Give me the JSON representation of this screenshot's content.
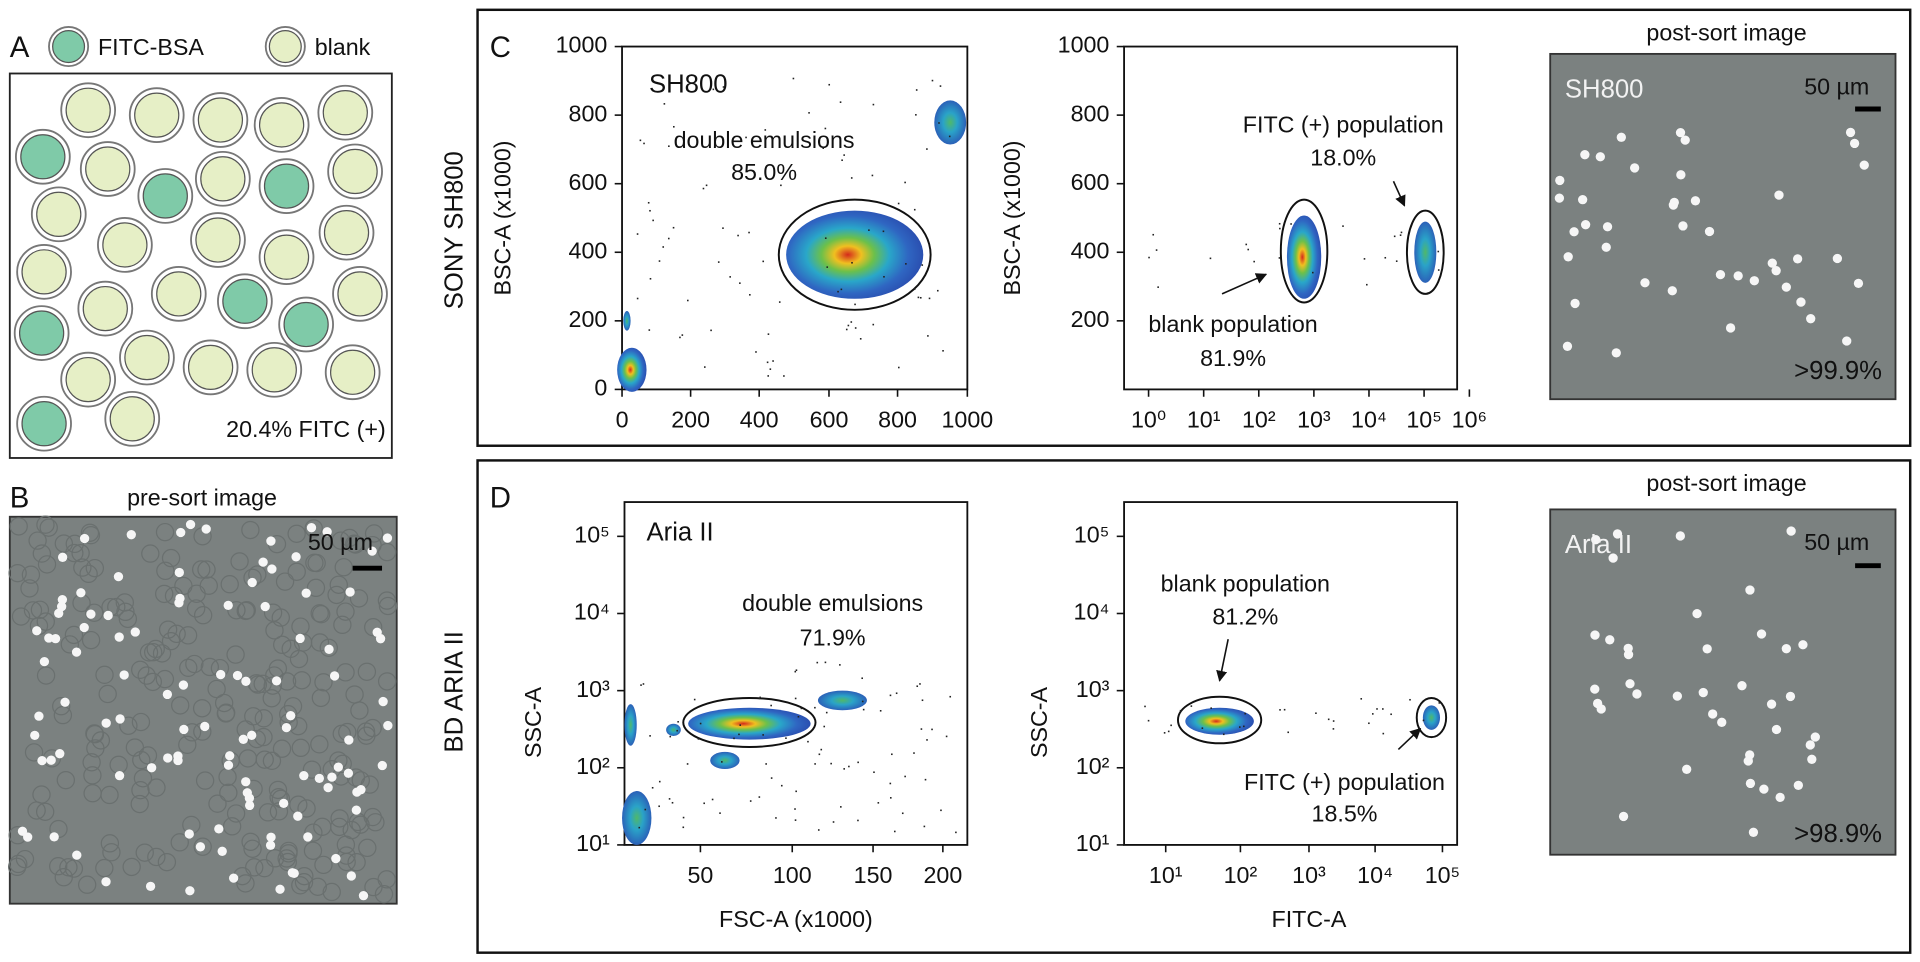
{
  "panel_a": {
    "label": "A",
    "legend": [
      "FITC-BSA",
      "blank"
    ],
    "caption": "20.4% FITC (+)"
  },
  "panel_b": {
    "label": "B",
    "title": "pre-sort image",
    "scale_bar": "50 µm"
  },
  "panel_c": {
    "label": "C",
    "row_label": "SONY SH800",
    "scatter_left": {
      "inset": "SH800",
      "y_label": "BSC-A (x1000)",
      "y_ticks": [
        "1000",
        "800",
        "600",
        "400",
        "200",
        "0"
      ],
      "x_ticks": [
        "0",
        "200",
        "400",
        "600",
        "800",
        "1000"
      ],
      "gate_label": "double emulsions",
      "gate_percent": "85.0%"
    },
    "scatter_right": {
      "y_label": "BSC-A (x1000)",
      "y_ticks": [
        "1000",
        "800",
        "600",
        "400",
        "200"
      ],
      "x_ticks": [
        "10⁰",
        "10¹",
        "10²",
        "10³",
        "10⁴",
        "10⁵",
        "10⁶"
      ],
      "positive_label": "FITC (+) population",
      "positive_percent": "18.0%",
      "blank_label": "blank population",
      "blank_percent": "81.9%"
    },
    "image": {
      "title": "post-sort image",
      "inset": "SH800",
      "scale_bar": "50 µm",
      "purity": ">99.9%"
    }
  },
  "panel_d": {
    "label": "D",
    "row_label": "BD ARIA II",
    "scatter_left": {
      "inset": "Aria II",
      "y_label": "SSC-A",
      "x_label": "FSC-A (x1000)",
      "y_ticks": [
        "10⁵",
        "10⁴",
        "10³",
        "10²",
        "10¹"
      ],
      "x_ticks": [
        "50",
        "100",
        "150",
        "200"
      ],
      "gate_label": "double emulsions",
      "gate_percent": "71.9%"
    },
    "scatter_right": {
      "y_label": "SSC-A",
      "x_label": "FITC-A",
      "y_ticks": [
        "10⁵",
        "10⁴",
        "10³",
        "10²",
        "10¹"
      ],
      "x_ticks": [
        "10¹",
        "10²",
        "10³",
        "10⁴",
        "10⁵"
      ],
      "blank_label": "blank population",
      "blank_percent": "81.2%",
      "positive_label": "FITC (+) population",
      "positive_percent": "18.5%"
    },
    "image": {
      "title": "post-sort image",
      "inset": "Aria II",
      "scale_bar": "50 µm",
      "purity": ">98.9%"
    }
  }
}
